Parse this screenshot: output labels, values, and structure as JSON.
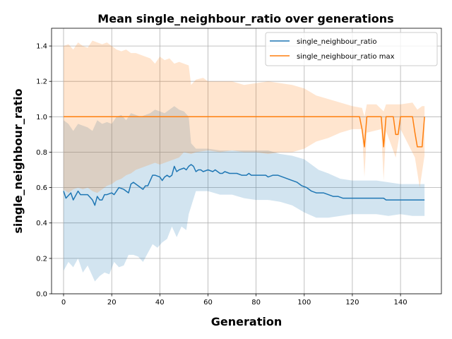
{
  "chart_data": {
    "type": "line",
    "title": "Mean single_neighbour_ratio over generations",
    "xlabel": "Generation",
    "ylabel": "single_neighbour_ratio",
    "xlim": [
      -5,
      157
    ],
    "ylim": [
      0.0,
      1.5
    ],
    "xticks": [
      0,
      20,
      40,
      60,
      80,
      100,
      120,
      140
    ],
    "yticks": [
      0.0,
      0.2,
      0.4,
      0.6,
      0.8,
      1.0,
      1.2,
      1.4
    ],
    "ytick_labels": [
      "0.0",
      "0.2",
      "0.4",
      "0.6",
      "0.8",
      "1.0",
      "1.2",
      "1.4"
    ],
    "grid": true,
    "legend_position": "top-right",
    "colors": {
      "mean": "#1f77b4",
      "max": "#ff7f0e",
      "mean_band": "#1f77b4",
      "max_band": "#ff7f0e"
    },
    "series": [
      {
        "name": "single_neighbour_ratio",
        "color": "#1f77b4",
        "points": [
          [
            0,
            0.58
          ],
          [
            1,
            0.54
          ],
          [
            3,
            0.57
          ],
          [
            4,
            0.53
          ],
          [
            6,
            0.58
          ],
          [
            7,
            0.56
          ],
          [
            10,
            0.56
          ],
          [
            12,
            0.53
          ],
          [
            13,
            0.5
          ],
          [
            14,
            0.55
          ],
          [
            15,
            0.53
          ],
          [
            16,
            0.53
          ],
          [
            17,
            0.56
          ],
          [
            18,
            0.56
          ],
          [
            20,
            0.57
          ],
          [
            21,
            0.56
          ],
          [
            22,
            0.58
          ],
          [
            23,
            0.6
          ],
          [
            25,
            0.59
          ],
          [
            26,
            0.58
          ],
          [
            27,
            0.57
          ],
          [
            28,
            0.62
          ],
          [
            29,
            0.63
          ],
          [
            30,
            0.62
          ],
          [
            31,
            0.61
          ],
          [
            33,
            0.59
          ],
          [
            34,
            0.61
          ],
          [
            35,
            0.61
          ],
          [
            36,
            0.64
          ],
          [
            37,
            0.67
          ],
          [
            38,
            0.67
          ],
          [
            40,
            0.66
          ],
          [
            41,
            0.64
          ],
          [
            42,
            0.66
          ],
          [
            43,
            0.67
          ],
          [
            44,
            0.66
          ],
          [
            45,
            0.67
          ],
          [
            46,
            0.72
          ],
          [
            47,
            0.69
          ],
          [
            48,
            0.7
          ],
          [
            50,
            0.71
          ],
          [
            51,
            0.7
          ],
          [
            52,
            0.72
          ],
          [
            53,
            0.73
          ],
          [
            54,
            0.72
          ],
          [
            55,
            0.69
          ],
          [
            56,
            0.7
          ],
          [
            57,
            0.7
          ],
          [
            58,
            0.69
          ],
          [
            60,
            0.7
          ],
          [
            62,
            0.69
          ],
          [
            63,
            0.7
          ],
          [
            65,
            0.68
          ],
          [
            66,
            0.68
          ],
          [
            67,
            0.69
          ],
          [
            69,
            0.68
          ],
          [
            70,
            0.68
          ],
          [
            72,
            0.68
          ],
          [
            74,
            0.67
          ],
          [
            76,
            0.67
          ],
          [
            77,
            0.68
          ],
          [
            78,
            0.67
          ],
          [
            80,
            0.67
          ],
          [
            82,
            0.67
          ],
          [
            84,
            0.67
          ],
          [
            85,
            0.66
          ],
          [
            87,
            0.67
          ],
          [
            89,
            0.67
          ],
          [
            91,
            0.66
          ],
          [
            93,
            0.65
          ],
          [
            95,
            0.64
          ],
          [
            97,
            0.63
          ],
          [
            99,
            0.61
          ],
          [
            101,
            0.6
          ],
          [
            103,
            0.58
          ],
          [
            105,
            0.57
          ],
          [
            108,
            0.57
          ],
          [
            110,
            0.56
          ],
          [
            112,
            0.55
          ],
          [
            114,
            0.55
          ],
          [
            116,
            0.54
          ],
          [
            118,
            0.54
          ],
          [
            120,
            0.54
          ],
          [
            123,
            0.54
          ],
          [
            126,
            0.54
          ],
          [
            128,
            0.54
          ],
          [
            131,
            0.54
          ],
          [
            133,
            0.54
          ],
          [
            134,
            0.53
          ],
          [
            136,
            0.53
          ],
          [
            138,
            0.53
          ],
          [
            140,
            0.53
          ],
          [
            142,
            0.53
          ],
          [
            145,
            0.53
          ],
          [
            148,
            0.53
          ],
          [
            150,
            0.53
          ]
        ],
        "band_upper": [
          [
            0,
            0.98
          ],
          [
            2,
            0.96
          ],
          [
            4,
            0.92
          ],
          [
            6,
            0.96
          ],
          [
            8,
            0.95
          ],
          [
            10,
            0.94
          ],
          [
            12,
            0.92
          ],
          [
            14,
            0.98
          ],
          [
            16,
            0.96
          ],
          [
            18,
            0.97
          ],
          [
            20,
            0.96
          ],
          [
            22,
            1.0
          ],
          [
            24,
            1.01
          ],
          [
            26,
            0.98
          ],
          [
            28,
            1.02
          ],
          [
            30,
            1.01
          ],
          [
            32,
            1.0
          ],
          [
            34,
            1.01
          ],
          [
            36,
            1.02
          ],
          [
            38,
            1.04
          ],
          [
            40,
            1.03
          ],
          [
            42,
            1.02
          ],
          [
            44,
            1.04
          ],
          [
            46,
            1.06
          ],
          [
            48,
            1.04
          ],
          [
            50,
            1.03
          ],
          [
            52,
            1.0
          ],
          [
            53,
            0.85
          ],
          [
            55,
            0.82
          ],
          [
            57,
            0.82
          ],
          [
            60,
            0.82
          ],
          [
            65,
            0.81
          ],
          [
            70,
            0.81
          ],
          [
            75,
            0.81
          ],
          [
            80,
            0.81
          ],
          [
            85,
            0.81
          ],
          [
            90,
            0.79
          ],
          [
            95,
            0.78
          ],
          [
            100,
            0.76
          ],
          [
            103,
            0.73
          ],
          [
            106,
            0.7
          ],
          [
            110,
            0.68
          ],
          [
            115,
            0.65
          ],
          [
            120,
            0.64
          ],
          [
            125,
            0.64
          ],
          [
            130,
            0.64
          ],
          [
            135,
            0.63
          ],
          [
            140,
            0.62
          ],
          [
            145,
            0.62
          ],
          [
            150,
            0.62
          ]
        ],
        "band_lower": [
          [
            0,
            0.13
          ],
          [
            2,
            0.18
          ],
          [
            4,
            0.15
          ],
          [
            6,
            0.2
          ],
          [
            8,
            0.12
          ],
          [
            10,
            0.16
          ],
          [
            12,
            0.1
          ],
          [
            13,
            0.07
          ],
          [
            15,
            0.1
          ],
          [
            17,
            0.12
          ],
          [
            19,
            0.11
          ],
          [
            21,
            0.18
          ],
          [
            23,
            0.15
          ],
          [
            25,
            0.16
          ],
          [
            27,
            0.22
          ],
          [
            29,
            0.22
          ],
          [
            31,
            0.21
          ],
          [
            33,
            0.18
          ],
          [
            35,
            0.23
          ],
          [
            37,
            0.28
          ],
          [
            39,
            0.26
          ],
          [
            41,
            0.29
          ],
          [
            43,
            0.31
          ],
          [
            45,
            0.38
          ],
          [
            47,
            0.32
          ],
          [
            49,
            0.38
          ],
          [
            51,
            0.36
          ],
          [
            52,
            0.45
          ],
          [
            55,
            0.58
          ],
          [
            60,
            0.58
          ],
          [
            65,
            0.56
          ],
          [
            70,
            0.56
          ],
          [
            75,
            0.54
          ],
          [
            80,
            0.53
          ],
          [
            85,
            0.53
          ],
          [
            90,
            0.52
          ],
          [
            95,
            0.5
          ],
          [
            100,
            0.46
          ],
          [
            105,
            0.43
          ],
          [
            110,
            0.43
          ],
          [
            115,
            0.44
          ],
          [
            120,
            0.45
          ],
          [
            125,
            0.45
          ],
          [
            130,
            0.45
          ],
          [
            135,
            0.44
          ],
          [
            140,
            0.45
          ],
          [
            145,
            0.44
          ],
          [
            150,
            0.44
          ]
        ]
      },
      {
        "name": "single_neighbour_ratio max",
        "color": "#ff7f0e",
        "points": [
          [
            0,
            1.0
          ],
          [
            123,
            1.0
          ],
          [
            124,
            0.93
          ],
          [
            125,
            0.83
          ],
          [
            126,
            1.0
          ],
          [
            132,
            1.0
          ],
          [
            133,
            0.83
          ],
          [
            134,
            1.0
          ],
          [
            137,
            1.0
          ],
          [
            138,
            0.9
          ],
          [
            139,
            0.9
          ],
          [
            140,
            1.0
          ],
          [
            145,
            1.0
          ],
          [
            146,
            0.91
          ],
          [
            147,
            0.83
          ],
          [
            149,
            0.83
          ],
          [
            150,
            1.0
          ]
        ],
        "band_upper": [
          [
            0,
            1.4
          ],
          [
            2,
            1.41
          ],
          [
            4,
            1.38
          ],
          [
            6,
            1.42
          ],
          [
            8,
            1.4
          ],
          [
            10,
            1.39
          ],
          [
            12,
            1.43
          ],
          [
            14,
            1.42
          ],
          [
            16,
            1.41
          ],
          [
            18,
            1.42
          ],
          [
            20,
            1.4
          ],
          [
            22,
            1.38
          ],
          [
            24,
            1.37
          ],
          [
            26,
            1.38
          ],
          [
            28,
            1.36
          ],
          [
            30,
            1.36
          ],
          [
            32,
            1.35
          ],
          [
            34,
            1.34
          ],
          [
            36,
            1.33
          ],
          [
            38,
            1.3
          ],
          [
            40,
            1.34
          ],
          [
            42,
            1.32
          ],
          [
            44,
            1.33
          ],
          [
            46,
            1.3
          ],
          [
            48,
            1.31
          ],
          [
            50,
            1.3
          ],
          [
            52,
            1.29
          ],
          [
            53,
            1.18
          ],
          [
            55,
            1.21
          ],
          [
            58,
            1.22
          ],
          [
            60,
            1.2
          ],
          [
            65,
            1.2
          ],
          [
            70,
            1.2
          ],
          [
            75,
            1.18
          ],
          [
            80,
            1.19
          ],
          [
            85,
            1.2
          ],
          [
            90,
            1.19
          ],
          [
            95,
            1.18
          ],
          [
            100,
            1.16
          ],
          [
            105,
            1.12
          ],
          [
            110,
            1.1
          ],
          [
            115,
            1.08
          ],
          [
            120,
            1.06
          ],
          [
            124,
            1.05
          ],
          [
            125,
            1.0
          ],
          [
            126,
            1.07
          ],
          [
            130,
            1.07
          ],
          [
            133,
            1.03
          ],
          [
            134,
            1.07
          ],
          [
            140,
            1.07
          ],
          [
            145,
            1.08
          ],
          [
            147,
            1.04
          ],
          [
            149,
            1.06
          ],
          [
            150,
            1.06
          ]
        ],
        "band_lower": [
          [
            0,
            0.59
          ],
          [
            2,
            0.57
          ],
          [
            4,
            0.59
          ],
          [
            6,
            0.6
          ],
          [
            8,
            0.59
          ],
          [
            10,
            0.6
          ],
          [
            12,
            0.58
          ],
          [
            14,
            0.57
          ],
          [
            16,
            0.59
          ],
          [
            18,
            0.61
          ],
          [
            20,
            0.62
          ],
          [
            22,
            0.64
          ],
          [
            24,
            0.65
          ],
          [
            26,
            0.67
          ],
          [
            28,
            0.68
          ],
          [
            30,
            0.7
          ],
          [
            32,
            0.71
          ],
          [
            34,
            0.72
          ],
          [
            36,
            0.73
          ],
          [
            38,
            0.74
          ],
          [
            40,
            0.73
          ],
          [
            42,
            0.74
          ],
          [
            44,
            0.75
          ],
          [
            46,
            0.76
          ],
          [
            48,
            0.77
          ],
          [
            50,
            0.8
          ],
          [
            53,
            0.79
          ],
          [
            55,
            0.8
          ],
          [
            60,
            0.81
          ],
          [
            65,
            0.8
          ],
          [
            70,
            0.81
          ],
          [
            75,
            0.8
          ],
          [
            80,
            0.8
          ],
          [
            85,
            0.79
          ],
          [
            90,
            0.8
          ],
          [
            95,
            0.8
          ],
          [
            100,
            0.82
          ],
          [
            105,
            0.86
          ],
          [
            110,
            0.88
          ],
          [
            115,
            0.91
          ],
          [
            120,
            0.93
          ],
          [
            124,
            0.93
          ],
          [
            125,
            0.66
          ],
          [
            126,
            0.91
          ],
          [
            132,
            0.93
          ],
          [
            133,
            0.64
          ],
          [
            134,
            0.92
          ],
          [
            138,
            0.77
          ],
          [
            140,
            0.93
          ],
          [
            146,
            0.77
          ],
          [
            148,
            0.6
          ],
          [
            150,
            0.78
          ]
        ]
      }
    ]
  }
}
